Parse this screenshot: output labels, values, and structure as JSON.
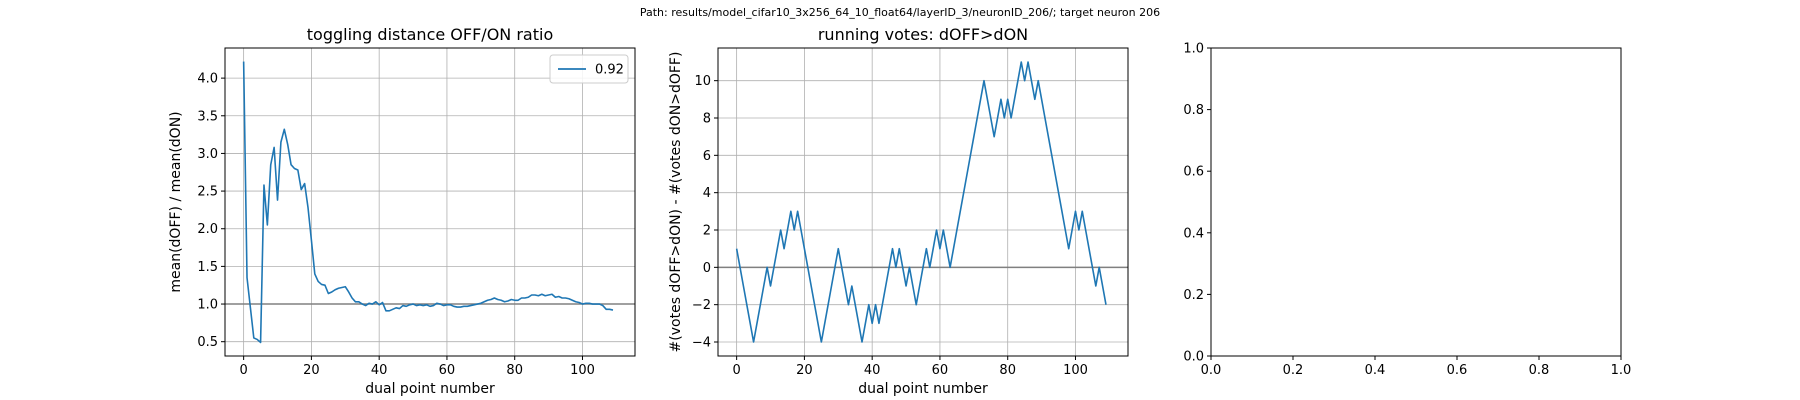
{
  "figure": {
    "suptitle": "Path: results/model_cifar10_3x256_64_10_float64/layerID_3/neuronID_206/; target neuron 206"
  },
  "colors": {
    "series": "#1f77b4",
    "refline": "#808080",
    "grid": "#b0b0b0",
    "axes": "#000000"
  },
  "chart_data": [
    {
      "type": "line",
      "title": "toggling distance OFF/ON ratio",
      "xlabel": "dual point number",
      "ylabel": "mean(dOFF) / mean(dON)",
      "xlim": [
        -5.5,
        115.5
      ],
      "ylim": [
        0.31,
        4.4
      ],
      "xticks": [
        0,
        20,
        40,
        60,
        80,
        100
      ],
      "yticks": [
        0.5,
        1.0,
        1.5,
        2.0,
        2.5,
        3.0,
        3.5,
        4.0
      ],
      "xtick_labels": [
        "0",
        "20",
        "40",
        "60",
        "80",
        "100"
      ],
      "ytick_labels": [
        "0.5",
        "1.0",
        "1.5",
        "2.0",
        "2.5",
        "3.0",
        "3.5",
        "4.0"
      ],
      "grid": true,
      "legend": {
        "position": "upper right",
        "entries": [
          "0.92"
        ]
      },
      "hline": 1.0,
      "series": [
        {
          "name": "0.92",
          "x": [
            0,
            1,
            2,
            3,
            4,
            5,
            6,
            7,
            8,
            9,
            10,
            11,
            12,
            13,
            14,
            15,
            16,
            17,
            18,
            19,
            20,
            21,
            22,
            23,
            24,
            25,
            26,
            27,
            28,
            29,
            30,
            31,
            32,
            33,
            34,
            35,
            36,
            37,
            38,
            39,
            40,
            41,
            42,
            43,
            44,
            45,
            46,
            47,
            48,
            49,
            50,
            51,
            52,
            53,
            54,
            55,
            56,
            57,
            58,
            59,
            60,
            61,
            62,
            63,
            64,
            65,
            66,
            67,
            68,
            69,
            70,
            71,
            72,
            73,
            74,
            75,
            76,
            77,
            78,
            79,
            80,
            81,
            82,
            83,
            84,
            85,
            86,
            87,
            88,
            89,
            90,
            91,
            92,
            93,
            94,
            95,
            96,
            97,
            98,
            99,
            100,
            101,
            102,
            103,
            104,
            105,
            106,
            107,
            108,
            109
          ],
          "y": [
            4.22,
            1.35,
            0.95,
            0.55,
            0.53,
            0.49,
            2.58,
            2.05,
            2.85,
            3.08,
            2.38,
            3.15,
            3.32,
            3.12,
            2.85,
            2.8,
            2.78,
            2.52,
            2.6,
            2.28,
            1.85,
            1.4,
            1.3,
            1.26,
            1.25,
            1.14,
            1.16,
            1.19,
            1.21,
            1.22,
            1.23,
            1.16,
            1.08,
            1.03,
            1.03,
            1.0,
            0.98,
            1.01,
            1.0,
            1.03,
            0.99,
            1.02,
            0.91,
            0.91,
            0.93,
            0.95,
            0.94,
            0.98,
            0.97,
            0.99,
            1.0,
            0.98,
            0.99,
            0.98,
            0.99,
            0.97,
            0.98,
            1.01,
            1.0,
            0.98,
            0.99,
            0.99,
            0.97,
            0.96,
            0.96,
            0.97,
            0.97,
            0.98,
            0.99,
            1.0,
            1.01,
            1.03,
            1.05,
            1.06,
            1.08,
            1.06,
            1.05,
            1.03,
            1.04,
            1.06,
            1.05,
            1.05,
            1.08,
            1.08,
            1.09,
            1.12,
            1.12,
            1.11,
            1.13,
            1.11,
            1.12,
            1.13,
            1.09,
            1.1,
            1.08,
            1.08,
            1.07,
            1.05,
            1.03,
            1.02,
            1.0,
            1.01,
            1.01,
            1.0,
            1.0,
            1.0,
            0.98,
            0.93,
            0.93,
            0.92
          ]
        }
      ]
    },
    {
      "type": "line",
      "title": "running votes: dOFF>dON",
      "xlabel": "dual point number",
      "ylabel": "#(votes dOFF>dON) - #(votes dON>dOFF)",
      "xlim": [
        -5.5,
        115.5
      ],
      "ylim": [
        -4.75,
        11.75
      ],
      "xticks": [
        0,
        20,
        40,
        60,
        80,
        100
      ],
      "yticks": [
        -4,
        -2,
        0,
        2,
        4,
        6,
        8,
        10
      ],
      "xtick_labels": [
        "0",
        "20",
        "40",
        "60",
        "80",
        "100"
      ],
      "ytick_labels": [
        "−4",
        "−2",
        "0",
        "2",
        "4",
        "6",
        "8",
        "10"
      ],
      "grid": true,
      "hline": 0,
      "series": [
        {
          "x": [
            0,
            1,
            2,
            3,
            4,
            5,
            6,
            7,
            8,
            9,
            10,
            11,
            12,
            13,
            14,
            15,
            16,
            17,
            18,
            19,
            20,
            21,
            22,
            23,
            24,
            25,
            26,
            27,
            28,
            29,
            30,
            31,
            32,
            33,
            34,
            35,
            36,
            37,
            38,
            39,
            40,
            41,
            42,
            43,
            44,
            45,
            46,
            47,
            48,
            49,
            50,
            51,
            52,
            53,
            54,
            55,
            56,
            57,
            58,
            59,
            60,
            61,
            62,
            63,
            64,
            65,
            66,
            67,
            68,
            69,
            70,
            71,
            72,
            73,
            74,
            75,
            76,
            77,
            78,
            79,
            80,
            81,
            82,
            83,
            84,
            85,
            86,
            87,
            88,
            89,
            90,
            91,
            92,
            93,
            94,
            95,
            96,
            97,
            98,
            99,
            100,
            101,
            102,
            103,
            104,
            105,
            106,
            107,
            108,
            109
          ],
          "y": [
            1,
            0,
            -1,
            -2,
            -3,
            -4,
            -3,
            -2,
            -1,
            0,
            -1,
            0,
            1,
            2,
            1,
            2,
            3,
            2,
            3,
            2,
            1,
            0,
            -1,
            -2,
            -3,
            -4,
            -3,
            -2,
            -1,
            0,
            1,
            0,
            -1,
            -2,
            -1,
            -2,
            -3,
            -4,
            -3,
            -2,
            -3,
            -2,
            -3,
            -2,
            -1,
            0,
            1,
            0,
            1,
            0,
            -1,
            0,
            -1,
            -2,
            -1,
            0,
            1,
            0,
            1,
            2,
            1,
            2,
            1,
            0,
            1,
            2,
            3,
            4,
            5,
            6,
            7,
            8,
            9,
            10,
            9,
            8,
            7,
            8,
            9,
            8,
            9,
            8,
            9,
            10,
            11,
            10,
            11,
            10,
            9,
            10,
            9,
            8,
            7,
            6,
            5,
            4,
            3,
            2,
            1,
            2,
            3,
            2,
            3,
            2,
            1,
            0,
            -1,
            0,
            -1,
            -2
          ]
        }
      ]
    },
    {
      "type": "line",
      "title": "",
      "xlabel": "",
      "ylabel": "",
      "xlim": [
        0,
        1
      ],
      "ylim": [
        0,
        1
      ],
      "xticks": [
        0,
        0.2,
        0.4,
        0.6,
        0.8,
        1.0
      ],
      "yticks": [
        0,
        0.2,
        0.4,
        0.6,
        0.8,
        1.0
      ],
      "xtick_labels": [
        "0.0",
        "0.2",
        "0.4",
        "0.6",
        "0.8",
        "1.0"
      ],
      "ytick_labels": [
        "0.0",
        "0.2",
        "0.4",
        "0.6",
        "0.8",
        "1.0"
      ],
      "grid": false,
      "series": []
    }
  ]
}
